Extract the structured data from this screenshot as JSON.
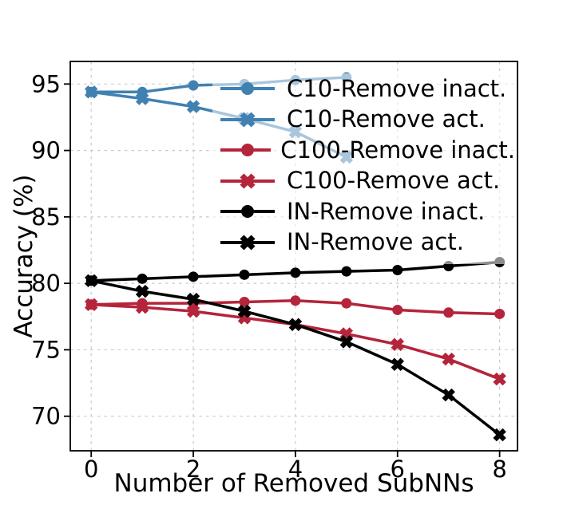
{
  "chart_data": {
    "type": "line",
    "title": "",
    "xlabel": "Number of Removed SubNNs",
    "ylabel": "Accuracy (%)",
    "x_ticks": [
      0,
      2,
      4,
      6,
      8
    ],
    "y_ticks": [
      70,
      75,
      80,
      85,
      90,
      95
    ],
    "xlim": [
      -0.41,
      8.35
    ],
    "ylim": [
      67.4,
      96.7
    ],
    "grid": "dashed-both-axes",
    "legend_position": "upper-right",
    "series": [
      {
        "name": "C10-Remove inact.",
        "color": "#4181b2",
        "marker": "circle",
        "x": [
          0,
          1,
          2,
          3,
          4,
          5
        ],
        "values": [
          94.4,
          94.4,
          94.9,
          95.0,
          95.3,
          95.5
        ]
      },
      {
        "name": "C10-Remove act.",
        "color": "#4181b2",
        "marker": "x",
        "x": [
          0,
          1,
          2,
          3,
          4,
          5
        ],
        "values": [
          94.4,
          93.9,
          93.3,
          92.4,
          91.4,
          89.5
        ]
      },
      {
        "name": "C100-Remove inact.",
        "color": "#b4243a",
        "marker": "circle",
        "x": [
          0,
          1,
          2,
          3,
          4,
          5,
          6,
          7,
          8
        ],
        "values": [
          78.4,
          78.5,
          78.5,
          78.6,
          78.7,
          78.5,
          78.0,
          77.8,
          77.7
        ]
      },
      {
        "name": "C100-Remove act.",
        "color": "#b4243a",
        "marker": "x",
        "x": [
          0,
          1,
          2,
          3,
          4,
          5,
          6,
          7,
          8
        ],
        "values": [
          78.4,
          78.2,
          77.9,
          77.4,
          76.9,
          76.2,
          75.4,
          74.3,
          72.8
        ]
      },
      {
        "name": "IN-Remove inact.",
        "color": "#000000",
        "marker": "circle",
        "x": [
          0,
          1,
          2,
          3,
          4,
          5,
          6,
          7,
          8
        ],
        "values": [
          80.2,
          80.35,
          80.5,
          80.65,
          80.8,
          80.9,
          81.0,
          81.3,
          81.6
        ]
      },
      {
        "name": "IN-Remove act.",
        "color": "#000000",
        "marker": "x",
        "x": [
          0,
          1,
          2,
          3,
          4,
          5,
          6,
          7,
          8
        ],
        "values": [
          80.2,
          79.4,
          78.8,
          77.9,
          76.9,
          75.6,
          73.9,
          71.6,
          68.6
        ]
      }
    ]
  }
}
